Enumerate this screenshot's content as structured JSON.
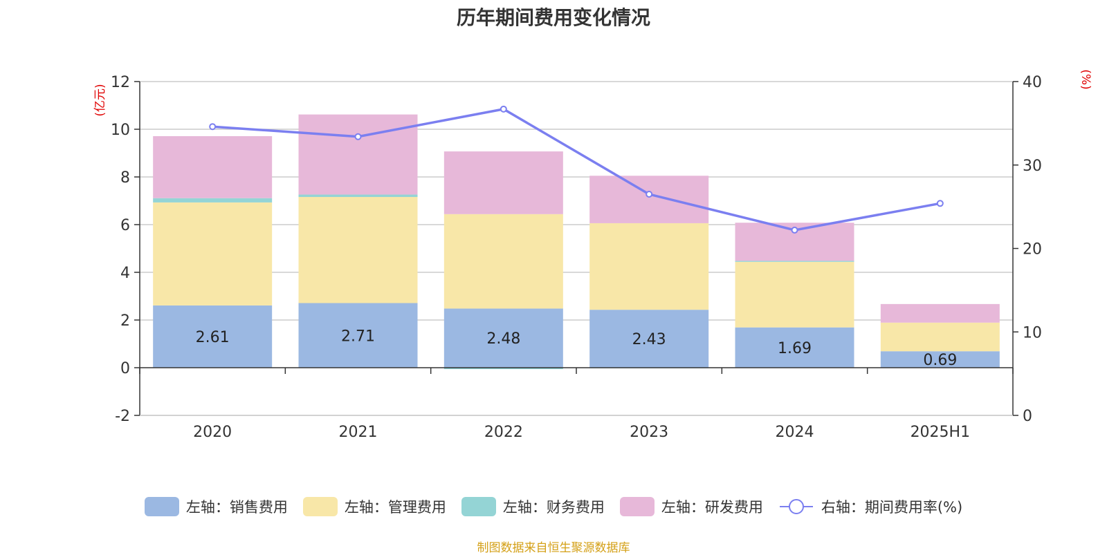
{
  "chart_data": {
    "type": "bar",
    "title": "历年期间费用变化情况",
    "categories": [
      "2020",
      "2021",
      "2022",
      "2023",
      "2024",
      "2025H1"
    ],
    "stacked": true,
    "y_left": {
      "unit_label": "(亿元)",
      "ylim": [
        -2,
        12
      ],
      "ticks": [
        -2,
        0,
        2,
        4,
        6,
        8,
        10,
        12
      ]
    },
    "y_right": {
      "unit_label": "(%)",
      "ylim": [
        0,
        40
      ],
      "ticks": [
        0,
        10,
        20,
        30,
        40
      ]
    },
    "series": [
      {
        "name": "左轴：销售费用",
        "axis": "left",
        "type": "bar",
        "color": "#9bb8e2",
        "values": [
          2.61,
          2.71,
          2.48,
          2.43,
          1.69,
          0.69
        ],
        "labels_shown": true
      },
      {
        "name": "左轴：管理费用",
        "axis": "left",
        "type": "bar",
        "color": "#f8e7a8",
        "values": [
          4.32,
          4.45,
          3.96,
          3.63,
          2.75,
          1.2
        ]
      },
      {
        "name": "左轴：财务费用",
        "axis": "left",
        "type": "bar",
        "color": "#94d4d5",
        "values": [
          0.18,
          0.1,
          -0.06,
          -0.02,
          0.04,
          0.0
        ]
      },
      {
        "name": "左轴：研发费用",
        "axis": "left",
        "type": "bar",
        "color": "#e7b8d9",
        "values": [
          2.6,
          3.36,
          2.63,
          1.99,
          1.6,
          0.78
        ]
      },
      {
        "name": "右轴：期间费用率(%)",
        "axis": "right",
        "type": "line",
        "color": "#7b7ff0",
        "values": [
          34.6,
          33.4,
          36.7,
          26.5,
          22.2,
          25.4
        ]
      }
    ],
    "grid": true,
    "legend_position": "bottom"
  },
  "source_note": "制图数据来自恒生聚源数据库"
}
